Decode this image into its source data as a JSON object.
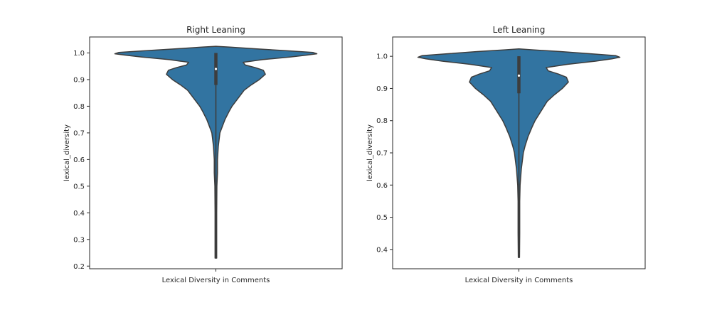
{
  "chart_data": [
    {
      "type": "violin",
      "title": "Right Leaning",
      "xlabel": "Lexical Diversity in Comments",
      "ylabel": "lexical_diversity",
      "ylim": [
        0.19,
        1.06
      ],
      "yticks": [
        0.2,
        0.3,
        0.4,
        0.5,
        0.6,
        0.7,
        0.8,
        0.9,
        1.0
      ],
      "ytick_labels": [
        "0.2",
        "0.3",
        "0.4",
        "0.5",
        "0.6",
        "0.7",
        "0.8",
        "0.9",
        "1.0"
      ],
      "grid": false,
      "fill_color": "#3274a1",
      "edge_color": "#3d3d3d",
      "density_max_halfwidth": 0.5,
      "density": [
        [
          0.23,
          0.004
        ],
        [
          0.3,
          0.004
        ],
        [
          0.4,
          0.004
        ],
        [
          0.5,
          0.005
        ],
        [
          0.55,
          0.008
        ],
        [
          0.6,
          0.008
        ],
        [
          0.65,
          0.012
        ],
        [
          0.7,
          0.02
        ],
        [
          0.72,
          0.03
        ],
        [
          0.75,
          0.045
        ],
        [
          0.78,
          0.065
        ],
        [
          0.8,
          0.08
        ],
        [
          0.83,
          0.11
        ],
        [
          0.86,
          0.14
        ],
        [
          0.88,
          0.175
        ],
        [
          0.9,
          0.215
        ],
        [
          0.92,
          0.245
        ],
        [
          0.935,
          0.235
        ],
        [
          0.945,
          0.195
        ],
        [
          0.955,
          0.145
        ],
        [
          0.965,
          0.135
        ],
        [
          0.975,
          0.23
        ],
        [
          0.985,
          0.37
        ],
        [
          0.992,
          0.45
        ],
        [
          0.997,
          0.5
        ],
        [
          1.002,
          0.48
        ],
        [
          1.008,
          0.36
        ],
        [
          1.015,
          0.21
        ],
        [
          1.022,
          0.07
        ],
        [
          1.025,
          0.0
        ]
      ],
      "median": 0.94,
      "q1": 0.88,
      "q3": 1.0,
      "whisker_low": 0.23,
      "whisker_high": 1.0
    },
    {
      "type": "violin",
      "title": "Left Leaning",
      "xlabel": "Lexical Diversity in Comments",
      "ylabel": "lexical_diversity",
      "ylim": [
        0.34,
        1.06
      ],
      "yticks": [
        0.4,
        0.5,
        0.6,
        0.7,
        0.8,
        0.9,
        1.0
      ],
      "ytick_labels": [
        "0.4",
        "0.5",
        "0.6",
        "0.7",
        "0.8",
        "0.9",
        "1.0"
      ],
      "grid": false,
      "fill_color": "#3274a1",
      "edge_color": "#3d3d3d",
      "density_max_halfwidth": 0.5,
      "density": [
        [
          0.375,
          0.003
        ],
        [
          0.45,
          0.004
        ],
        [
          0.55,
          0.004
        ],
        [
          0.6,
          0.006
        ],
        [
          0.65,
          0.012
        ],
        [
          0.7,
          0.022
        ],
        [
          0.72,
          0.03
        ],
        [
          0.75,
          0.045
        ],
        [
          0.78,
          0.065
        ],
        [
          0.8,
          0.08
        ],
        [
          0.83,
          0.11
        ],
        [
          0.86,
          0.14
        ],
        [
          0.88,
          0.175
        ],
        [
          0.9,
          0.215
        ],
        [
          0.92,
          0.245
        ],
        [
          0.935,
          0.235
        ],
        [
          0.945,
          0.195
        ],
        [
          0.955,
          0.145
        ],
        [
          0.965,
          0.135
        ],
        [
          0.975,
          0.24
        ],
        [
          0.985,
          0.38
        ],
        [
          0.992,
          0.46
        ],
        [
          0.997,
          0.5
        ],
        [
          1.002,
          0.48
        ],
        [
          1.008,
          0.35
        ],
        [
          1.015,
          0.2
        ],
        [
          1.02,
          0.07
        ],
        [
          1.023,
          0.0
        ]
      ],
      "median": 0.94,
      "q1": 0.885,
      "q3": 1.0,
      "whisker_low": 0.375,
      "whisker_high": 1.0
    }
  ]
}
